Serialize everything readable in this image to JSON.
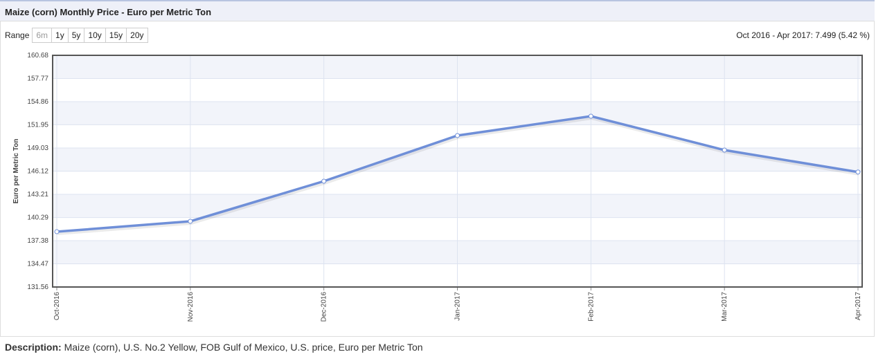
{
  "title": "Maize (corn) Monthly Price - Euro per Metric Ton",
  "range": {
    "label": "Range",
    "buttons": [
      "6m",
      "1y",
      "5y",
      "10y",
      "15y",
      "20y"
    ]
  },
  "change_text": "Oct 2016 - Apr 2017: 7.499 (5.42 %)",
  "description": {
    "label": "Description:",
    "text": "Maize (corn), U.S. No.2 Yellow, FOB Gulf of Mexico, U.S. price, Euro per Metric Ton"
  },
  "chart_data": {
    "type": "line",
    "y_label": "Euro per Metric Ton",
    "categories": [
      "Oct-2016",
      "Nov-2016",
      "Dec-2016",
      "Jan-2017",
      "Feb-2017",
      "Mar-2017",
      "Apr-2017"
    ],
    "values": [
      138.51,
      139.82,
      144.86,
      150.6,
      153.03,
      148.77,
      146.01
    ],
    "color": "#6f8fd8",
    "ylim": [
      131.56,
      160.68
    ],
    "yticks": [
      131.56,
      134.47,
      137.38,
      140.29,
      143.21,
      146.12,
      149.03,
      151.95,
      154.86,
      157.77,
      160.68
    ],
    "grid": true
  }
}
